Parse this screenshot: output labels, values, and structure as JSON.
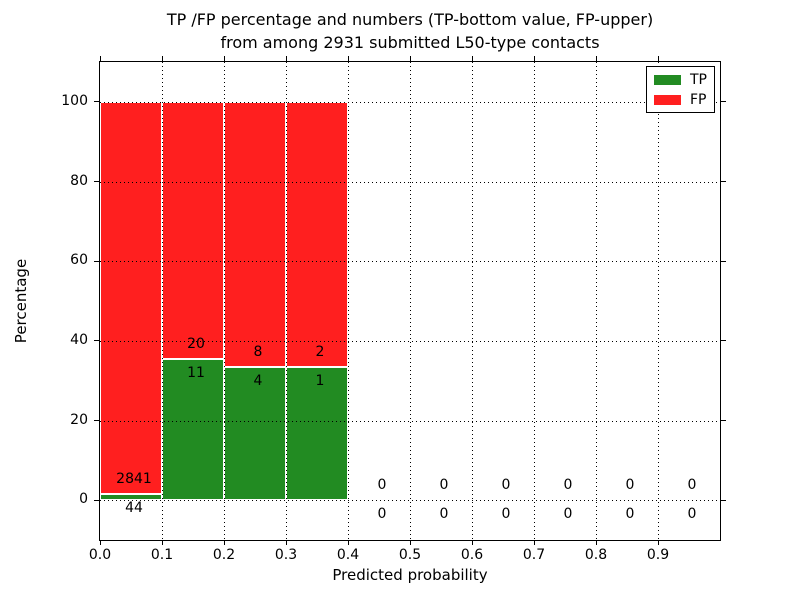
{
  "title": {
    "line1": "TP /FP percentage and numbers (TP-bottom value, FP-upper)",
    "line2": "from among 2931 submitted L50-type contacts"
  },
  "axes": {
    "xlabel": "Predicted probability",
    "ylabel": "Percentage"
  },
  "legend": {
    "items": [
      {
        "label": "TP",
        "color_key": "tp"
      },
      {
        "label": "FP",
        "color_key": "fp"
      }
    ]
  },
  "colors": {
    "tp": "#228b22",
    "fp": "#ff1f1f",
    "grid": "#000000",
    "bar_edge": "#ffffff",
    "text": "#000000"
  },
  "chart_data": {
    "type": "bar",
    "stacking": "percent",
    "title": "TP /FP percentage and numbers (TP-bottom value, FP-upper) from among 2931 submitted L50-type contacts",
    "xlabel": "Predicted probability",
    "ylabel": "Percentage",
    "xlim": [
      0.0,
      1.0
    ],
    "ylim": [
      -10,
      110
    ],
    "xticks": [
      0.0,
      0.1,
      0.2,
      0.3,
      0.4,
      0.5,
      0.6,
      0.7,
      0.8,
      0.9
    ],
    "xtick_labels": [
      "0.0",
      "0.1",
      "0.2",
      "0.3",
      "0.4",
      "0.5",
      "0.6",
      "0.7",
      "0.8",
      "0.9"
    ],
    "yticks": [
      0,
      20,
      40,
      60,
      80,
      100
    ],
    "ytick_labels": [
      "0",
      "20",
      "40",
      "60",
      "80",
      "100"
    ],
    "grid": "dotted",
    "legend_position": "upper right",
    "bin_width": 0.1,
    "total_contacts": 2931,
    "series": [
      {
        "name": "TP",
        "color_key": "tp"
      },
      {
        "name": "FP",
        "color_key": "fp"
      }
    ],
    "bins": [
      {
        "x0": 0.0,
        "x1": 0.1,
        "tp": 44,
        "fp": 2841
      },
      {
        "x0": 0.1,
        "x1": 0.2,
        "tp": 11,
        "fp": 20
      },
      {
        "x0": 0.2,
        "x1": 0.3,
        "tp": 4,
        "fp": 8
      },
      {
        "x0": 0.3,
        "x1": 0.4,
        "tp": 1,
        "fp": 2
      },
      {
        "x0": 0.4,
        "x1": 0.5,
        "tp": 0,
        "fp": 0
      },
      {
        "x0": 0.5,
        "x1": 0.6,
        "tp": 0,
        "fp": 0
      },
      {
        "x0": 0.6,
        "x1": 0.7,
        "tp": 0,
        "fp": 0
      },
      {
        "x0": 0.7,
        "x1": 0.8,
        "tp": 0,
        "fp": 0
      },
      {
        "x0": 0.8,
        "x1": 0.9,
        "tp": 0,
        "fp": 0
      },
      {
        "x0": 0.9,
        "x1": 1.0,
        "tp": 0,
        "fp": 0
      }
    ]
  }
}
